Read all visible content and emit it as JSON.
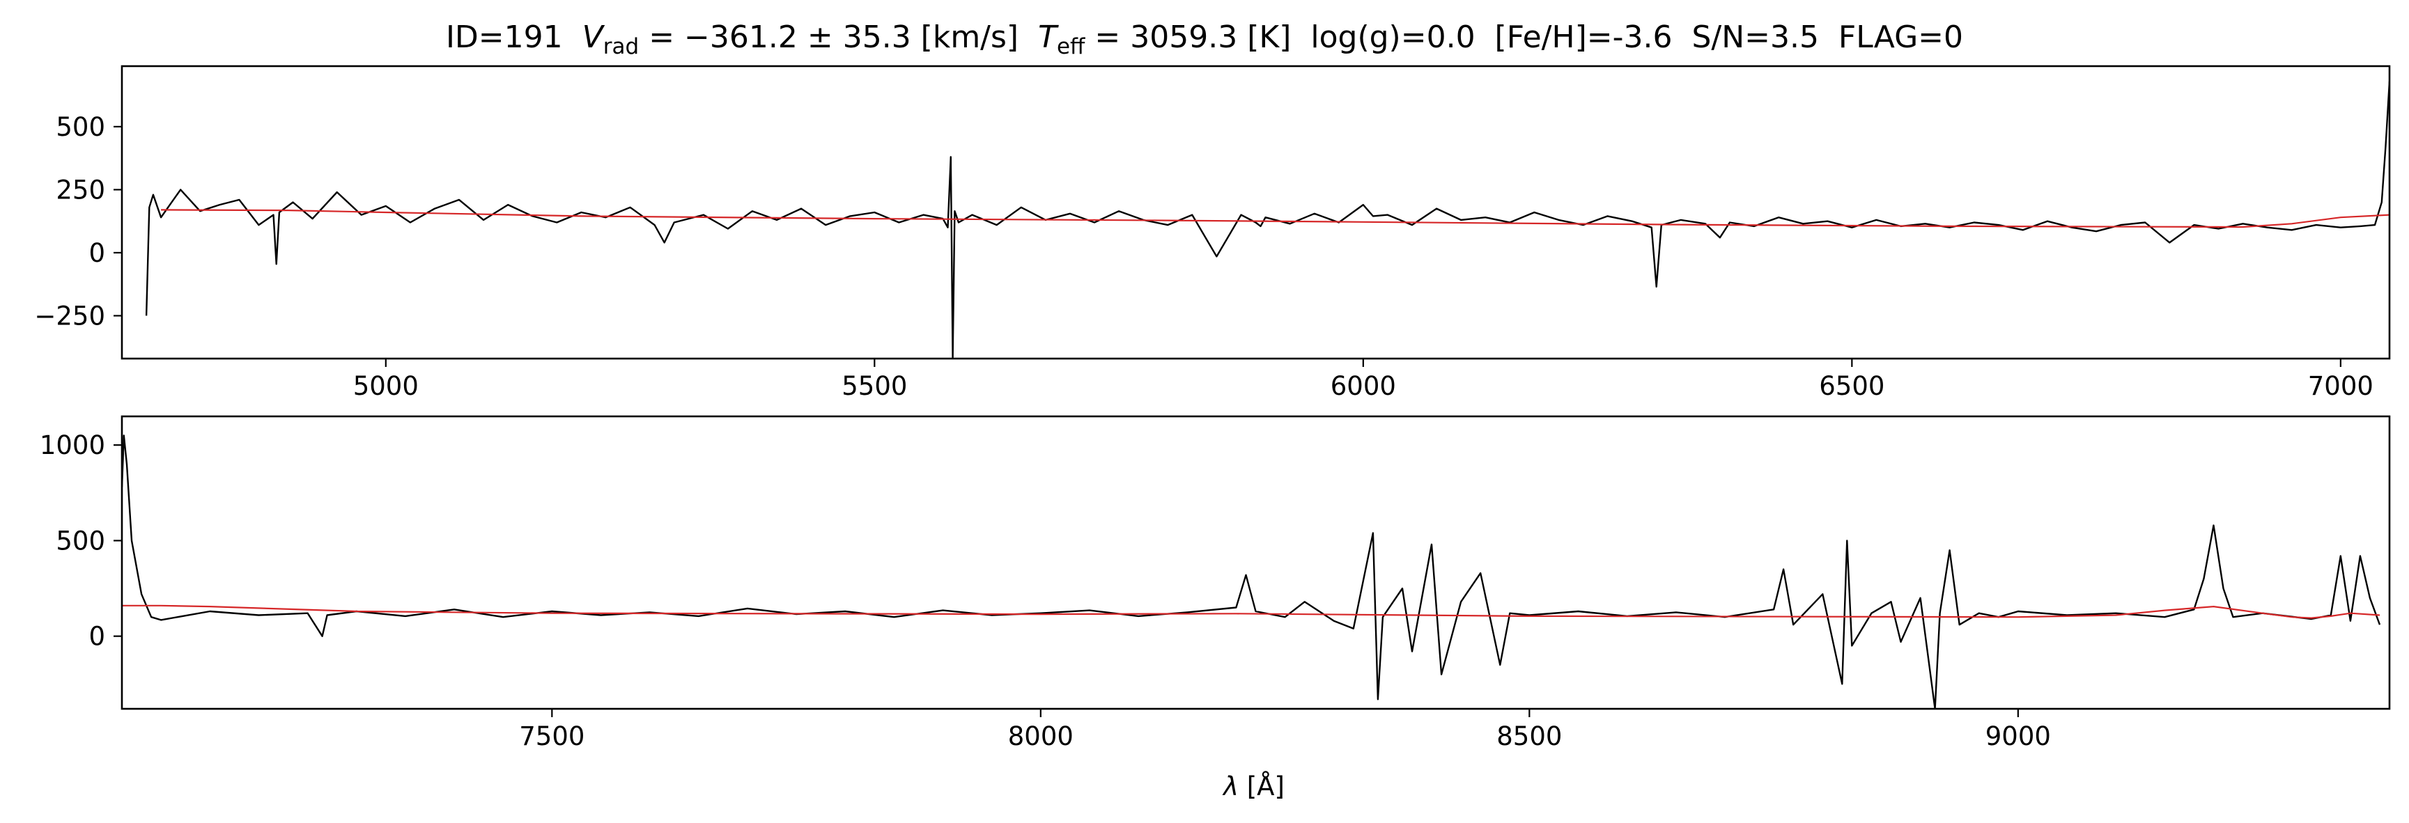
{
  "title_parts": {
    "id": "ID=191",
    "v_sym": "V",
    "v_sub": "rad",
    "v_val": " = −361.2 ± 35.3 [km/s]",
    "t_sym": "T",
    "t_sub": "eff",
    "t_val": " = 3059.3 [K]",
    "rest": "log(g)=0.0  [Fe/H]=-3.6  S/N=3.5  FLAG=0"
  },
  "xlabel_parts": {
    "lambda": "λ",
    "unit": " [Å]"
  },
  "colors": {
    "observed": "#000000",
    "model": "#d62728",
    "frame": "#000000"
  },
  "chart_data": [
    {
      "type": "line",
      "panel": "top",
      "xlim": [
        4730,
        7050
      ],
      "ylim": [
        -420,
        740
      ],
      "xticks": [
        5000,
        5500,
        6000,
        6500,
        7000
      ],
      "yticks": [
        -250,
        0,
        250,
        500
      ],
      "xtick_labels": [
        "5000",
        "5500",
        "6000",
        "6500",
        "7000"
      ],
      "ytick_labels": [
        "−250",
        "0",
        "250",
        "500"
      ],
      "series": [
        {
          "role": "observed spectrum",
          "color": "#000000",
          "x": [
            4755,
            4758,
            4762,
            4770,
            4790,
            4810,
            4830,
            4850,
            4870,
            4885,
            4888,
            4891,
            4905,
            4925,
            4950,
            4975,
            5000,
            5025,
            5050,
            5075,
            5100,
            5125,
            5150,
            5175,
            5200,
            5225,
            5250,
            5275,
            5285,
            5295,
            5325,
            5350,
            5375,
            5400,
            5425,
            5450,
            5475,
            5500,
            5525,
            5550,
            5570,
            5575,
            5578,
            5580,
            5582,
            5586,
            5600,
            5625,
            5650,
            5675,
            5700,
            5725,
            5750,
            5775,
            5800,
            5825,
            5850,
            5875,
            5890,
            5895,
            5900,
            5925,
            5950,
            5975,
            6000,
            6010,
            6025,
            6050,
            6075,
            6100,
            6125,
            6150,
            6175,
            6200,
            6225,
            6250,
            6275,
            6295,
            6300,
            6305,
            6325,
            6350,
            6365,
            6375,
            6400,
            6425,
            6450,
            6475,
            6500,
            6525,
            6550,
            6575,
            6600,
            6625,
            6650,
            6675,
            6700,
            6725,
            6750,
            6775,
            6800,
            6825,
            6850,
            6875,
            6900,
            6925,
            6950,
            6975,
            7000,
            7020,
            7035,
            7042,
            7046,
            7050
          ],
          "y": [
            -250,
            180,
            230,
            140,
            250,
            165,
            190,
            210,
            110,
            150,
            -45,
            160,
            200,
            135,
            240,
            150,
            185,
            120,
            175,
            210,
            130,
            190,
            145,
            120,
            160,
            140,
            180,
            110,
            40,
            120,
            150,
            95,
            165,
            130,
            175,
            110,
            145,
            160,
            120,
            150,
            135,
            100,
            380,
            -420,
            165,
            120,
            150,
            110,
            180,
            130,
            155,
            120,
            165,
            130,
            110,
            150,
            -15,
            150,
            120,
            105,
            140,
            115,
            155,
            120,
            190,
            145,
            150,
            110,
            175,
            130,
            140,
            120,
            160,
            130,
            110,
            145,
            125,
            100,
            -135,
            110,
            130,
            115,
            60,
            120,
            105,
            140,
            115,
            125,
            100,
            130,
            105,
            115,
            100,
            120,
            110,
            90,
            125,
            100,
            85,
            110,
            120,
            40,
            110,
            95,
            115,
            100,
            90,
            110,
            100,
            105,
            110,
            200,
            420,
            680
          ]
        },
        {
          "role": "model fit",
          "color": "#d62728",
          "x": [
            4770,
            4900,
            5000,
            5200,
            5500,
            5800,
            6000,
            6300,
            6600,
            6900,
            6950,
            7000,
            7050
          ],
          "y": [
            170,
            168,
            160,
            145,
            135,
            128,
            122,
            112,
            105,
            102,
            115,
            140,
            150
          ]
        }
      ]
    },
    {
      "type": "line",
      "panel": "bottom",
      "xlim": [
        7060,
        9380
      ],
      "ylim": [
        -380,
        1150
      ],
      "xticks": [
        7500,
        8000,
        8500,
        9000
      ],
      "yticks": [
        0,
        500,
        1000
      ],
      "xtick_labels": [
        "7500",
        "8000",
        "8500",
        "9000"
      ],
      "ytick_labels": [
        "0",
        "500",
        "1000"
      ],
      "series": [
        {
          "role": "observed spectrum",
          "color": "#000000",
          "x": [
            7060,
            7062,
            7065,
            7070,
            7080,
            7090,
            7100,
            7150,
            7200,
            7250,
            7265,
            7270,
            7300,
            7350,
            7400,
            7450,
            7500,
            7550,
            7600,
            7650,
            7700,
            7750,
            7800,
            7850,
            7900,
            7950,
            8000,
            8050,
            8100,
            8150,
            8200,
            8210,
            8220,
            8250,
            8270,
            8300,
            8320,
            8340,
            8345,
            8350,
            8370,
            8380,
            8400,
            8410,
            8430,
            8450,
            8470,
            8480,
            8500,
            8550,
            8600,
            8650,
            8700,
            8750,
            8760,
            8770,
            8800,
            8820,
            8825,
            8830,
            8850,
            8870,
            8880,
            8900,
            8915,
            8920,
            8930,
            8940,
            8960,
            8980,
            9000,
            9050,
            9100,
            9150,
            9180,
            9190,
            9200,
            9210,
            9220,
            9250,
            9300,
            9320,
            9330,
            9340,
            9350,
            9360,
            9370
          ],
          "y": [
            780,
            1050,
            900,
            500,
            220,
            100,
            85,
            130,
            110,
            120,
            0,
            110,
            130,
            105,
            140,
            100,
            130,
            110,
            125,
            105,
            145,
            115,
            130,
            100,
            135,
            110,
            120,
            135,
            105,
            125,
            150,
            320,
            130,
            100,
            180,
            80,
            40,
            540,
            -330,
            100,
            250,
            -80,
            480,
            -200,
            180,
            330,
            -150,
            120,
            110,
            130,
            105,
            125,
            100,
            140,
            350,
            60,
            220,
            -250,
            500,
            -50,
            120,
            180,
            -30,
            200,
            -380,
            120,
            450,
            60,
            120,
            100,
            130,
            110,
            120,
            100,
            140,
            300,
            580,
            250,
            100,
            120,
            90,
            110,
            420,
            80,
            420,
            200,
            60
          ]
        },
        {
          "role": "model fit",
          "color": "#d62728",
          "x": [
            7060,
            7100,
            7150,
            7300,
            7500,
            8000,
            8200,
            8500,
            9000,
            9100,
            9150,
            9200,
            9250,
            9280,
            9300,
            9320,
            9340,
            9370
          ],
          "y": [
            160,
            160,
            155,
            130,
            120,
            115,
            118,
            105,
            100,
            110,
            135,
            155,
            120,
            100,
            95,
            105,
            120,
            110
          ]
        }
      ]
    }
  ]
}
